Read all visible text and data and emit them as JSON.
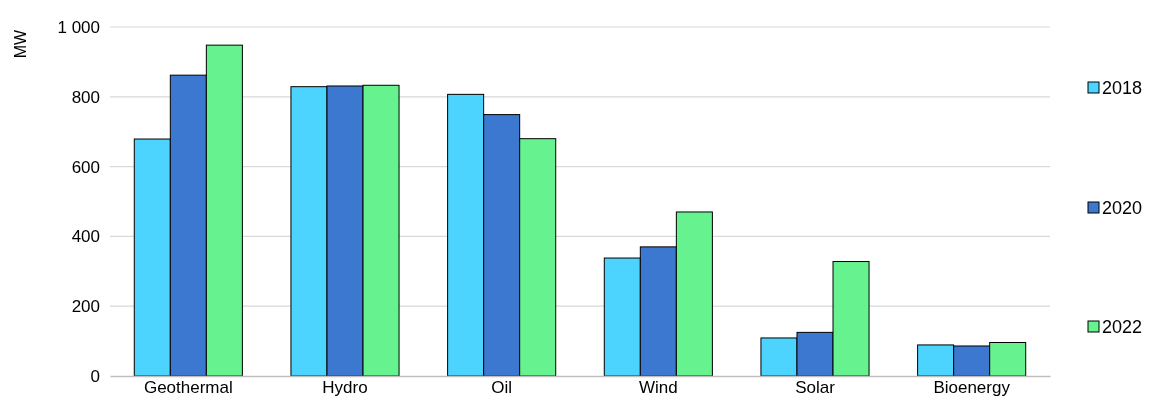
{
  "chart_data": {
    "type": "bar",
    "ylabel": "MW",
    "categories": [
      "Geothermal",
      "Hydro",
      "Oil",
      "Wind",
      "Solar",
      "Bioenergy"
    ],
    "series": [
      {
        "name": "2018",
        "color": "#4dd4fe",
        "values": [
          679,
          829,
          807,
          338,
          109,
          89
        ]
      },
      {
        "name": "2020",
        "color": "#3c78d0",
        "values": [
          862,
          831,
          749,
          370,
          125,
          86
        ]
      },
      {
        "name": "2022",
        "color": "#67f290",
        "values": [
          948,
          833,
          680,
          470,
          328,
          96
        ]
      }
    ],
    "ylim": [
      0,
      1000
    ],
    "yticks": [
      0,
      200,
      400,
      600,
      800,
      {
        "value": 1000,
        "label": "1 000"
      }
    ],
    "grid": "y",
    "legend": "right"
  }
}
